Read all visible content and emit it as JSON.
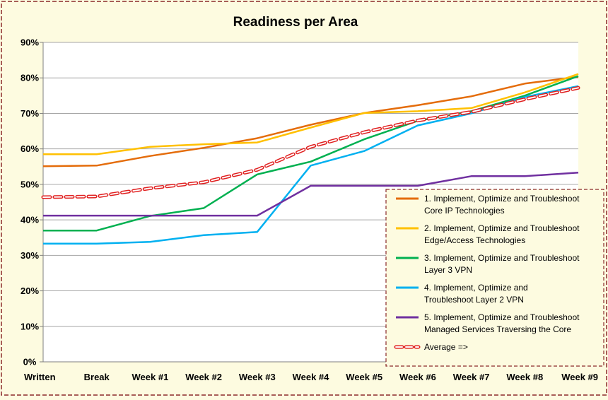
{
  "chart_data": {
    "type": "line",
    "title": "Readiness per Area",
    "xlabel": "",
    "ylabel": "",
    "categories": [
      "Written",
      "Break",
      "Week #1",
      "Week #2",
      "Week #3",
      "Week #4",
      "Week #5",
      "Week #6",
      "Week #7",
      "Week #8",
      "Week #9"
    ],
    "y_ticks": [
      "0%",
      "10%",
      "20%",
      "30%",
      "40%",
      "50%",
      "60%",
      "70%",
      "80%",
      "90%"
    ],
    "ylim": [
      0,
      90
    ],
    "y_unit": "%",
    "grid": true,
    "legend_position": "right-lower",
    "series": [
      {
        "name": [
          "1. Implement, Optimize and Troubleshoot",
          "Core IP Technologies"
        ],
        "color": "#e46c0a",
        "style": "solid",
        "values": [
          55.1,
          55.3,
          58.0,
          60.3,
          63.0,
          66.8,
          70.1,
          72.3,
          74.8,
          78.4,
          80.3
        ]
      },
      {
        "name": [
          "2. Implement, Optimize and Troubleshoot",
          "Edge/Access Technologies"
        ],
        "color": "#ffc000",
        "style": "solid",
        "values": [
          58.5,
          58.5,
          60.6,
          61.3,
          61.8,
          66.0,
          70.1,
          70.6,
          71.5,
          75.9,
          81.1
        ]
      },
      {
        "name": [
          "3. Implement, Optimize and Troubleshoot",
          "Layer 3 VPN"
        ],
        "color": "#00b050",
        "style": "solid",
        "values": [
          37.0,
          37.0,
          41.1,
          43.3,
          52.8,
          56.4,
          62.7,
          67.9,
          70.6,
          75.0,
          80.5
        ]
      },
      {
        "name": [
          "4. Implement, Optimize and",
          "Troubleshoot Layer 2 VPN"
        ],
        "color": "#00b0f0",
        "style": "solid",
        "values": [
          33.3,
          33.3,
          33.8,
          35.7,
          36.6,
          55.3,
          59.4,
          66.6,
          70.0,
          74.6,
          77.7
        ]
      },
      {
        "name": [
          "5. Implement, Optimize and Troubleshoot",
          "Managed Services Traversing the Core"
        ],
        "color": "#7030a0",
        "style": "solid",
        "values": [
          41.2,
          41.2,
          41.2,
          41.2,
          41.2,
          49.6,
          49.6,
          49.6,
          52.3,
          52.3,
          53.3
        ]
      },
      {
        "name": [
          "Average =>"
        ],
        "color": "#e02020",
        "style": "dashed",
        "values": [
          46.4,
          46.6,
          48.9,
          50.6,
          54.1,
          60.6,
          64.7,
          68.0,
          70.4,
          74.0,
          77.2
        ]
      }
    ]
  }
}
